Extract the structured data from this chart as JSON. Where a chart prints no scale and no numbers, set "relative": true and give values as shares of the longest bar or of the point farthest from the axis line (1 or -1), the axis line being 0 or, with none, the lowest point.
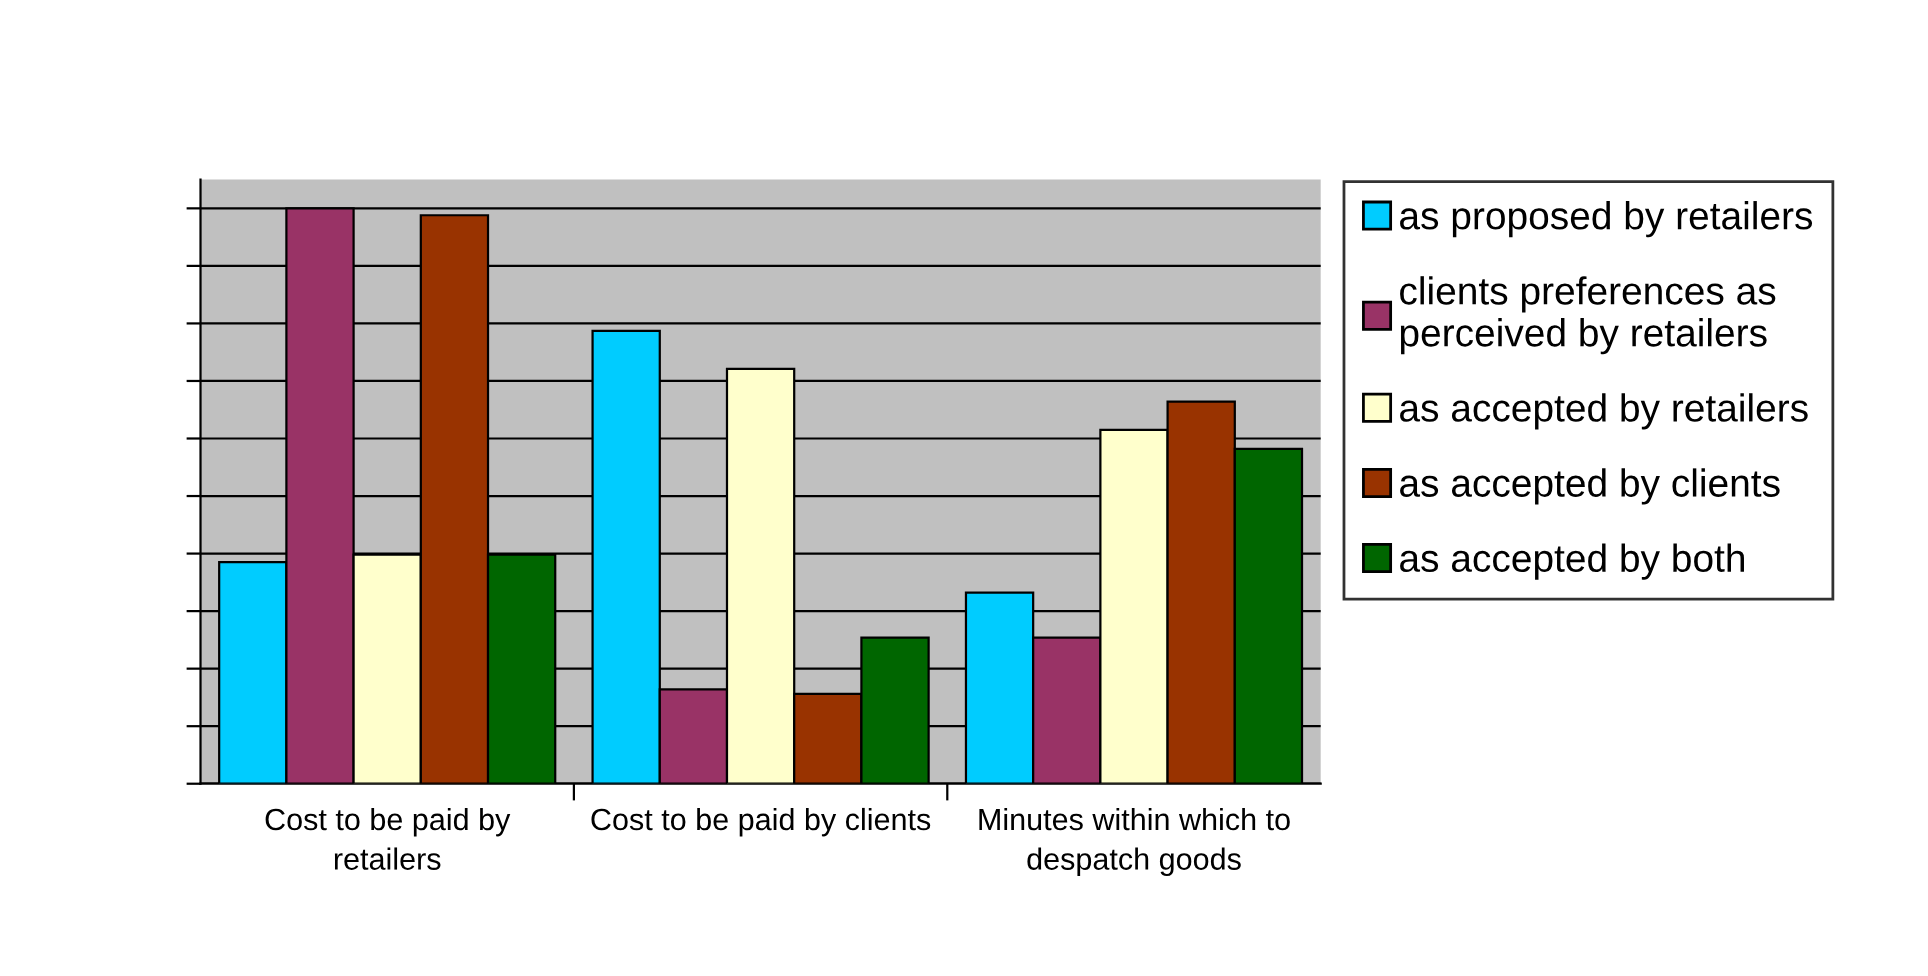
{
  "chart_data": {
    "type": "bar",
    "relative": true,
    "categories": [
      "Cost to be paid by retailers",
      "Cost to be paid by clients",
      "Minutes within which to despatch goods"
    ],
    "series": [
      {
        "name": "as proposed by retailers",
        "color": "#00ccff",
        "values": [
          0.385,
          0.787,
          0.332
        ]
      },
      {
        "name": "clients preferences as perceived by retailers",
        "color": "#993366",
        "values": [
          1,
          0.164,
          0.254
        ]
      },
      {
        "name": "as accepted by retailers",
        "color": "#ffffcc",
        "values": [
          0.398,
          0.721,
          0.615
        ]
      },
      {
        "name": "as accepted by clients",
        "color": "#993300",
        "values": [
          0.988,
          0.156,
          0.664
        ]
      },
      {
        "name": "as accepted by both",
        "color": "#006600",
        "values": [
          0.398,
          0.254,
          0.582
        ]
      }
    ],
    "grid": "y",
    "legend": "right"
  }
}
